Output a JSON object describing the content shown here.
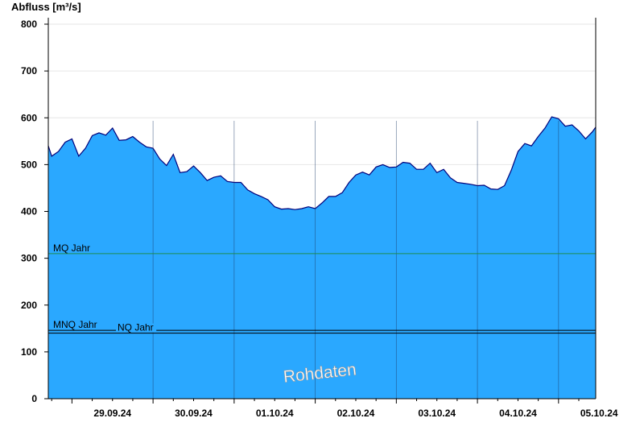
{
  "chart_data": {
    "type": "area",
    "ylabel": "Abfluss [m³/s]",
    "ylim": [
      0,
      800
    ],
    "yticks": [
      0,
      100,
      200,
      300,
      400,
      500,
      600,
      700,
      800
    ],
    "xlim": [
      "28.09.24 17:00",
      "05.10.24 11:00"
    ],
    "day_labels": [
      "29.09.24",
      "30.09.24",
      "01.10.24",
      "02.10.24",
      "03.10.24",
      "04.10.24",
      "05.10.24"
    ],
    "day_boundaries": [
      "29.09.24 00:00",
      "30.09.24 00:00",
      "01.10.24 00:00",
      "02.10.24 00:00",
      "03.10.24 00:00",
      "04.10.24 00:00",
      "05.10.24 00:00"
    ],
    "series": [
      {
        "x": [
          "28.09.24 17:00",
          "28.09.24 18:00",
          "28.09.24 20:00",
          "28.09.24 22:00",
          "29.09.24 00:00",
          "29.09.24 02:00",
          "29.09.24 04:00",
          "29.09.24 06:00",
          "29.09.24 08:00",
          "29.09.24 10:00",
          "29.09.24 12:00",
          "29.09.24 14:00",
          "29.09.24 16:00",
          "29.09.24 18:00",
          "29.09.24 20:00",
          "29.09.24 22:00",
          "30.09.24 00:00",
          "30.09.24 02:00",
          "30.09.24 04:00",
          "30.09.24 06:00",
          "30.09.24 08:00",
          "30.09.24 10:00",
          "30.09.24 12:00",
          "30.09.24 14:00",
          "30.09.24 16:00",
          "30.09.24 18:00",
          "30.09.24 20:00",
          "30.09.24 22:00",
          "01.10.24 00:00",
          "01.10.24 02:00",
          "01.10.24 04:00",
          "01.10.24 06:00",
          "01.10.24 08:00",
          "01.10.24 10:00",
          "01.10.24 12:00",
          "01.10.24 14:00",
          "01.10.24 16:00",
          "01.10.24 18:00",
          "01.10.24 20:00",
          "01.10.24 22:00",
          "02.10.24 00:00",
          "02.10.24 02:00",
          "02.10.24 04:00",
          "02.10.24 06:00",
          "02.10.24 08:00",
          "02.10.24 10:00",
          "02.10.24 12:00",
          "02.10.24 14:00",
          "02.10.24 16:00",
          "02.10.24 18:00",
          "02.10.24 20:00",
          "02.10.24 22:00",
          "03.10.24 00:00",
          "03.10.24 02:00",
          "03.10.24 04:00",
          "03.10.24 06:00",
          "03.10.24 08:00",
          "03.10.24 10:00",
          "03.10.24 12:00",
          "03.10.24 14:00",
          "03.10.24 16:00",
          "03.10.24 18:00",
          "03.10.24 20:00",
          "03.10.24 22:00",
          "04.10.24 00:00",
          "04.10.24 02:00",
          "04.10.24 04:00",
          "04.10.24 06:00",
          "04.10.24 08:00",
          "04.10.24 10:00",
          "04.10.24 12:00",
          "04.10.24 14:00",
          "04.10.24 16:00",
          "04.10.24 18:00",
          "04.10.24 20:00",
          "04.10.24 22:00",
          "05.10.24 00:00",
          "05.10.24 02:00",
          "05.10.24 04:00",
          "05.10.24 06:00",
          "05.10.24 08:00",
          "05.10.24 10:00",
          "05.10.24 11:00"
        ],
        "values": [
          540,
          518,
          528,
          548,
          555,
          518,
          535,
          562,
          568,
          563,
          578,
          552,
          553,
          560,
          548,
          538,
          535,
          512,
          498,
          522,
          483,
          485,
          497,
          483,
          466,
          473,
          476,
          464,
          462,
          462,
          446,
          438,
          432,
          425,
          410,
          405,
          406,
          404,
          406,
          410,
          406,
          418,
          432,
          432,
          440,
          462,
          478,
          484,
          478,
          495,
          500,
          494,
          495,
          505,
          503,
          490,
          490,
          503,
          483,
          490,
          472,
          462,
          460,
          458,
          455,
          456,
          448,
          447,
          455,
          488,
          528,
          545,
          540,
          560,
          578,
          602,
          598,
          582,
          585,
          572,
          555,
          570,
          580
        ]
      }
    ],
    "reference_lines": [
      {
        "label": "MQ Jahr",
        "value": 310,
        "color": "#1e8c50"
      },
      {
        "label": "MNQ Jahr",
        "value": 146,
        "color": "#000000"
      },
      {
        "label": "NQ Jahr",
        "value": 140,
        "color": "#000000"
      }
    ],
    "fill_color": "#2aa8ff",
    "line_color": "#00007a",
    "grid": "horizontal lines at y ticks, vertical lines at day boundaries",
    "watermark": "Rohdaten"
  }
}
